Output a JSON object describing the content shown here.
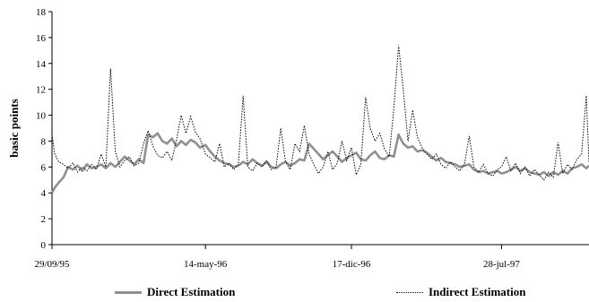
{
  "chart_data": {
    "type": "line",
    "title": "",
    "xlabel": "",
    "ylabel": "basic points",
    "ylim": [
      0,
      18
    ],
    "yticks": [
      "0",
      "2",
      "4",
      "6",
      "8",
      "10",
      "12",
      "14",
      "16",
      "18"
    ],
    "xticks": [
      "29/09/95",
      "14-may-96",
      "17-dic-96",
      "28-jul-97"
    ],
    "xtick_dates": [
      "1995-09-29",
      "1996-05-14",
      "1996-12-17",
      "1997-07-28"
    ],
    "x_range": [
      "1995-09-29",
      "1997-12-05"
    ],
    "grid": false,
    "legend_position": "bottom",
    "series": [
      {
        "name": "Direct Estimation",
        "color": "#909090",
        "style": "solid",
        "points": [
          [
            "1995-09-29",
            4.0
          ],
          [
            "1995-10-03",
            4.4
          ],
          [
            "1995-10-09",
            4.8
          ],
          [
            "1995-10-16",
            5.2
          ],
          [
            "1995-10-23",
            6.0
          ],
          [
            "1995-10-30",
            5.8
          ],
          [
            "1995-11-06",
            6.1
          ],
          [
            "1995-11-13",
            5.7
          ],
          [
            "1995-11-20",
            6.2
          ],
          [
            "1995-11-27",
            5.9
          ],
          [
            "1995-12-04",
            6.0
          ],
          [
            "1995-12-11",
            6.2
          ],
          [
            "1995-12-18",
            5.9
          ],
          [
            "1995-12-25",
            6.3
          ],
          [
            "1996-01-01",
            6.0
          ],
          [
            "1996-01-08",
            6.4
          ],
          [
            "1996-01-15",
            6.8
          ],
          [
            "1996-01-22",
            6.5
          ],
          [
            "1996-01-29",
            6.2
          ],
          [
            "1996-02-05",
            6.6
          ],
          [
            "1996-02-12",
            6.3
          ],
          [
            "1996-02-19",
            8.5
          ],
          [
            "1996-02-26",
            8.3
          ],
          [
            "1996-03-04",
            8.6
          ],
          [
            "1996-03-11",
            8.0
          ],
          [
            "1996-03-18",
            7.8
          ],
          [
            "1996-03-25",
            8.2
          ],
          [
            "1996-04-01",
            7.6
          ],
          [
            "1996-04-08",
            8.0
          ],
          [
            "1996-04-15",
            7.7
          ],
          [
            "1996-04-22",
            8.1
          ],
          [
            "1996-04-29",
            7.9
          ],
          [
            "1996-05-06",
            7.5
          ],
          [
            "1996-05-14",
            7.7
          ],
          [
            "1996-05-21",
            7.2
          ],
          [
            "1996-05-28",
            6.8
          ],
          [
            "1996-06-04",
            6.5
          ],
          [
            "1996-06-11",
            6.3
          ],
          [
            "1996-06-18",
            6.2
          ],
          [
            "1996-06-25",
            6.0
          ],
          [
            "1996-07-02",
            6.1
          ],
          [
            "1996-07-09",
            6.4
          ],
          [
            "1996-07-16",
            6.2
          ],
          [
            "1996-07-23",
            6.6
          ],
          [
            "1996-07-30",
            6.3
          ],
          [
            "1996-08-06",
            6.1
          ],
          [
            "1996-08-13",
            6.4
          ],
          [
            "1996-08-20",
            6.0
          ],
          [
            "1996-08-27",
            5.9
          ],
          [
            "1996-09-03",
            6.2
          ],
          [
            "1996-09-10",
            6.4
          ],
          [
            "1996-09-17",
            6.1
          ],
          [
            "1996-09-24",
            6.3
          ],
          [
            "1996-10-01",
            6.6
          ],
          [
            "1996-10-08",
            6.5
          ],
          [
            "1996-10-15",
            7.8
          ],
          [
            "1996-10-22",
            7.4
          ],
          [
            "1996-10-29",
            7.0
          ],
          [
            "1996-11-05",
            6.6
          ],
          [
            "1996-11-12",
            6.9
          ],
          [
            "1996-11-19",
            7.2
          ],
          [
            "1996-11-26",
            6.8
          ],
          [
            "1996-12-03",
            6.4
          ],
          [
            "1996-12-10",
            6.7
          ],
          [
            "1996-12-17",
            6.9
          ],
          [
            "1996-12-24",
            7.1
          ],
          [
            "1996-12-31",
            6.6
          ],
          [
            "1997-01-07",
            6.5
          ],
          [
            "1997-01-14",
            6.9
          ],
          [
            "1997-01-21",
            7.2
          ],
          [
            "1997-01-28",
            6.7
          ],
          [
            "1997-02-04",
            6.6
          ],
          [
            "1997-02-11",
            6.9
          ],
          [
            "1997-02-18",
            6.8
          ],
          [
            "1997-02-25",
            8.5
          ],
          [
            "1997-03-04",
            7.8
          ],
          [
            "1997-03-11",
            7.5
          ],
          [
            "1997-03-18",
            7.6
          ],
          [
            "1997-03-25",
            7.2
          ],
          [
            "1997-04-01",
            7.3
          ],
          [
            "1997-04-08",
            7.1
          ],
          [
            "1997-04-15",
            6.8
          ],
          [
            "1997-04-22",
            6.5
          ],
          [
            "1997-04-29",
            6.7
          ],
          [
            "1997-05-06",
            6.4
          ],
          [
            "1997-05-13",
            6.3
          ],
          [
            "1997-05-20",
            6.2
          ],
          [
            "1997-05-27",
            6.0
          ],
          [
            "1997-06-03",
            6.1
          ],
          [
            "1997-06-10",
            6.2
          ],
          [
            "1997-06-17",
            5.8
          ],
          [
            "1997-06-24",
            5.6
          ],
          [
            "1997-07-01",
            5.7
          ],
          [
            "1997-07-08",
            5.5
          ],
          [
            "1997-07-15",
            5.6
          ],
          [
            "1997-07-22",
            5.7
          ],
          [
            "1997-07-28",
            5.5
          ],
          [
            "1997-08-04",
            5.6
          ],
          [
            "1997-08-11",
            5.8
          ],
          [
            "1997-08-18",
            6.0
          ],
          [
            "1997-08-25",
            5.7
          ],
          [
            "1997-09-01",
            5.9
          ],
          [
            "1997-09-08",
            5.6
          ],
          [
            "1997-09-15",
            5.5
          ],
          [
            "1997-09-22",
            5.4
          ],
          [
            "1997-09-29",
            5.6
          ],
          [
            "1997-10-06",
            5.3
          ],
          [
            "1997-10-13",
            5.6
          ],
          [
            "1997-10-20",
            5.4
          ],
          [
            "1997-10-27",
            5.7
          ],
          [
            "1997-11-03",
            5.5
          ],
          [
            "1997-11-10",
            5.9
          ],
          [
            "1997-11-17",
            6.0
          ],
          [
            "1997-11-24",
            6.2
          ],
          [
            "1997-12-01",
            5.9
          ],
          [
            "1997-12-05",
            6.1
          ]
        ]
      },
      {
        "name": "Indirect Estimation",
        "color": "#000000",
        "style": "dotted",
        "points": [
          [
            "1995-09-29",
            8.5
          ],
          [
            "1995-10-03",
            7.0
          ],
          [
            "1995-10-09",
            6.4
          ],
          [
            "1995-10-16",
            6.2
          ],
          [
            "1995-10-23",
            5.9
          ],
          [
            "1995-10-30",
            6.3
          ],
          [
            "1995-11-06",
            5.6
          ],
          [
            "1995-11-13",
            6.0
          ],
          [
            "1995-11-20",
            5.7
          ],
          [
            "1995-11-27",
            6.2
          ],
          [
            "1995-12-04",
            5.8
          ],
          [
            "1995-12-11",
            7.0
          ],
          [
            "1995-12-18",
            6.0
          ],
          [
            "1995-12-25",
            13.6
          ],
          [
            "1996-01-01",
            7.2
          ],
          [
            "1996-01-08",
            6.0
          ],
          [
            "1996-01-15",
            6.5
          ],
          [
            "1996-01-22",
            6.8
          ],
          [
            "1996-01-29",
            6.1
          ],
          [
            "1996-02-05",
            6.3
          ],
          [
            "1996-02-12",
            7.8
          ],
          [
            "1996-02-19",
            8.8
          ],
          [
            "1996-02-26",
            7.6
          ],
          [
            "1996-03-04",
            6.9
          ],
          [
            "1996-03-11",
            6.7
          ],
          [
            "1996-03-18",
            7.2
          ],
          [
            "1996-03-25",
            6.5
          ],
          [
            "1996-04-01",
            8.1
          ],
          [
            "1996-04-08",
            10.0
          ],
          [
            "1996-04-15",
            8.6
          ],
          [
            "1996-04-22",
            9.9
          ],
          [
            "1996-04-29",
            8.7
          ],
          [
            "1996-05-06",
            8.2
          ],
          [
            "1996-05-14",
            7.0
          ],
          [
            "1996-05-21",
            6.7
          ],
          [
            "1996-05-28",
            6.4
          ],
          [
            "1996-06-04",
            7.8
          ],
          [
            "1996-06-11",
            6.0
          ],
          [
            "1996-06-18",
            6.3
          ],
          [
            "1996-06-25",
            5.8
          ],
          [
            "1996-07-02",
            6.2
          ],
          [
            "1996-07-09",
            11.5
          ],
          [
            "1996-07-16",
            6.0
          ],
          [
            "1996-07-23",
            5.7
          ],
          [
            "1996-07-30",
            6.3
          ],
          [
            "1996-08-06",
            6.0
          ],
          [
            "1996-08-13",
            6.5
          ],
          [
            "1996-08-20",
            5.8
          ],
          [
            "1996-08-27",
            6.0
          ],
          [
            "1996-09-03",
            9.0
          ],
          [
            "1996-09-10",
            6.4
          ],
          [
            "1996-09-17",
            5.8
          ],
          [
            "1996-09-24",
            7.8
          ],
          [
            "1996-10-01",
            7.2
          ],
          [
            "1996-10-08",
            9.2
          ],
          [
            "1996-10-15",
            7.0
          ],
          [
            "1996-10-22",
            6.2
          ],
          [
            "1996-10-29",
            5.5
          ],
          [
            "1996-11-05",
            6.0
          ],
          [
            "1996-11-12",
            7.2
          ],
          [
            "1996-11-19",
            5.8
          ],
          [
            "1996-11-26",
            6.3
          ],
          [
            "1996-12-03",
            8.0
          ],
          [
            "1996-12-10",
            6.5
          ],
          [
            "1996-12-17",
            7.5
          ],
          [
            "1996-12-24",
            5.4
          ],
          [
            "1996-12-31",
            6.2
          ],
          [
            "1997-01-07",
            11.4
          ],
          [
            "1997-01-14",
            9.0
          ],
          [
            "1997-01-21",
            8.0
          ],
          [
            "1997-01-28",
            8.6
          ],
          [
            "1997-02-04",
            7.4
          ],
          [
            "1997-02-11",
            6.8
          ],
          [
            "1997-02-18",
            10.5
          ],
          [
            "1997-02-25",
            15.4
          ],
          [
            "1997-03-04",
            12.0
          ],
          [
            "1997-03-11",
            8.0
          ],
          [
            "1997-03-18",
            10.4
          ],
          [
            "1997-03-25",
            8.3
          ],
          [
            "1997-04-01",
            7.5
          ],
          [
            "1997-04-08",
            7.0
          ],
          [
            "1997-04-15",
            6.6
          ],
          [
            "1997-04-22",
            7.0
          ],
          [
            "1997-04-29",
            6.2
          ],
          [
            "1997-05-06",
            5.9
          ],
          [
            "1997-05-13",
            6.4
          ],
          [
            "1997-05-20",
            6.0
          ],
          [
            "1997-05-27",
            5.7
          ],
          [
            "1997-06-03",
            6.2
          ],
          [
            "1997-06-10",
            8.4
          ],
          [
            "1997-06-17",
            6.0
          ],
          [
            "1997-06-24",
            5.6
          ],
          [
            "1997-07-01",
            6.2
          ],
          [
            "1997-07-08",
            5.5
          ],
          [
            "1997-07-15",
            5.3
          ],
          [
            "1997-07-22",
            5.8
          ],
          [
            "1997-07-28",
            6.0
          ],
          [
            "1997-08-04",
            6.8
          ],
          [
            "1997-08-11",
            5.7
          ],
          [
            "1997-08-18",
            6.3
          ],
          [
            "1997-08-25",
            5.5
          ],
          [
            "1997-09-01",
            6.0
          ],
          [
            "1997-09-08",
            5.3
          ],
          [
            "1997-09-15",
            5.8
          ],
          [
            "1997-09-22",
            5.4
          ],
          [
            "1997-09-29",
            5.0
          ],
          [
            "1997-10-06",
            5.6
          ],
          [
            "1997-10-13",
            5.2
          ],
          [
            "1997-10-20",
            7.9
          ],
          [
            "1997-10-27",
            5.5
          ],
          [
            "1997-11-03",
            6.2
          ],
          [
            "1997-11-10",
            5.8
          ],
          [
            "1997-11-17",
            6.6
          ],
          [
            "1997-11-24",
            7.0
          ],
          [
            "1997-12-01",
            11.5
          ],
          [
            "1997-12-05",
            6.3
          ]
        ]
      }
    ]
  }
}
